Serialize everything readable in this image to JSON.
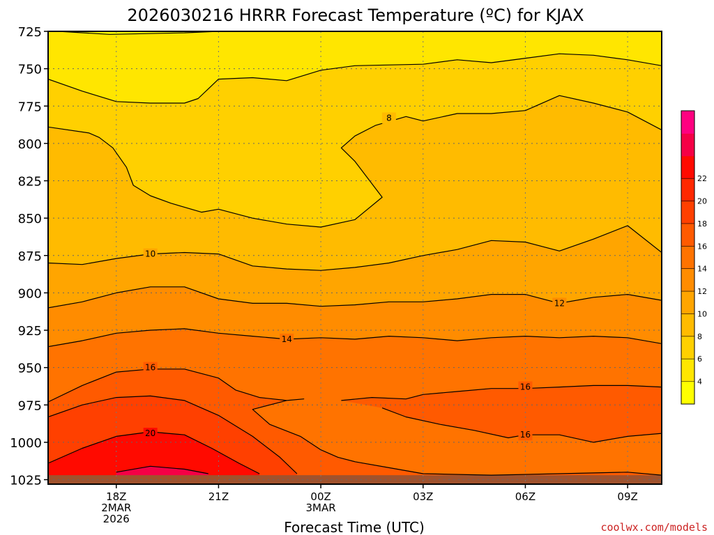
{
  "chart_data": {
    "type": "heatmap",
    "title": "2026030216 HRRR Forecast Temperature (ºC) for KJAX",
    "xlabel": "Forecast Time (UTC)",
    "credit": "coolwx.com/models",
    "credit_color": "#cc2222",
    "y_axis": {
      "ylim": [
        725,
        1028
      ],
      "ticks": [
        725,
        750,
        775,
        800,
        825,
        850,
        875,
        900,
        925,
        950,
        975,
        1000,
        1025
      ],
      "inverted": true
    },
    "x_axis": {
      "xlim": [
        16,
        34
      ],
      "grid": true,
      "ticks": [
        {
          "x": 18,
          "label": [
            "18Z",
            "2MAR",
            "2026"
          ]
        },
        {
          "x": 21,
          "label": [
            "21Z"
          ]
        },
        {
          "x": 24,
          "label": [
            "00Z",
            "3MAR"
          ]
        },
        {
          "x": 27,
          "label": [
            "03Z"
          ]
        },
        {
          "x": 30,
          "label": [
            "06Z"
          ]
        },
        {
          "x": 33,
          "label": [
            "09Z"
          ]
        }
      ]
    },
    "ground_color": "#a0522d",
    "colorbar": {
      "ticks": [
        4,
        6,
        8,
        10,
        12,
        14,
        16,
        18,
        20,
        22
      ],
      "colors": [
        "#ffff00",
        "#ffe600",
        "#ffd000",
        "#ffbb00",
        "#ffa500",
        "#ff8c00",
        "#ff7300",
        "#ff5a00",
        "#ff4000",
        "#ff2800",
        "#ff0a00",
        "#f50046",
        "#ff0080"
      ]
    },
    "contours": [
      {
        "level": 6,
        "label": "",
        "points": [
          [
            16.3,
            725
          ],
          [
            17.8,
            727
          ],
          [
            20.0,
            726
          ],
          [
            21.0,
            725
          ]
        ]
      },
      {
        "level": 6,
        "label": "",
        "points": [
          [
            16.0,
            757
          ],
          [
            17.0,
            765
          ],
          [
            18.0,
            772
          ],
          [
            19.0,
            773
          ],
          [
            20.0,
            773
          ],
          [
            20.4,
            770
          ],
          [
            21.0,
            757
          ],
          [
            22.0,
            756
          ],
          [
            23.0,
            758
          ],
          [
            24.0,
            751
          ],
          [
            25.0,
            748
          ],
          [
            27.0,
            747
          ],
          [
            28.0,
            744
          ],
          [
            29.0,
            746
          ],
          [
            30.0,
            743
          ],
          [
            31.0,
            740
          ],
          [
            32.0,
            741
          ],
          [
            33.0,
            744
          ],
          [
            34.0,
            748
          ]
        ]
      },
      {
        "level": 8,
        "label": "8",
        "label_at": [
          26.0,
          783
        ],
        "points": [
          [
            16.0,
            789
          ],
          [
            17.2,
            793
          ],
          [
            17.5,
            796
          ],
          [
            17.9,
            803
          ],
          [
            18.3,
            816
          ],
          [
            18.5,
            828
          ],
          [
            19.0,
            835
          ],
          [
            19.6,
            840
          ],
          [
            20.5,
            846
          ],
          [
            21.0,
            844
          ],
          [
            22.0,
            850
          ],
          [
            23.0,
            854
          ],
          [
            24.0,
            856
          ],
          [
            25.0,
            851
          ],
          [
            25.8,
            836
          ],
          [
            25.0,
            812
          ],
          [
            24.6,
            803
          ],
          [
            25.0,
            795
          ],
          [
            25.6,
            788
          ],
          [
            26.5,
            782
          ],
          [
            27.0,
            785
          ],
          [
            28.0,
            780
          ],
          [
            29.0,
            780
          ],
          [
            30.0,
            778
          ],
          [
            31.0,
            768
          ],
          [
            32.0,
            773
          ],
          [
            33.0,
            779
          ],
          [
            34.0,
            791
          ]
        ]
      },
      {
        "level": 10,
        "label": "10",
        "label_at": [
          19.0,
          874
        ],
        "points": [
          [
            16.0,
            880
          ],
          [
            17.0,
            881
          ],
          [
            18.0,
            877
          ],
          [
            19.0,
            874
          ],
          [
            20.0,
            873
          ],
          [
            21.0,
            874
          ],
          [
            22.0,
            882
          ],
          [
            23.0,
            884
          ],
          [
            24.0,
            885
          ],
          [
            25.0,
            883
          ],
          [
            26.0,
            880
          ],
          [
            27.0,
            875
          ],
          [
            28.0,
            871
          ],
          [
            29.0,
            865
          ],
          [
            30.0,
            866
          ],
          [
            31.0,
            872
          ],
          [
            32.0,
            864
          ],
          [
            33.0,
            855
          ],
          [
            34.0,
            873
          ]
        ]
      },
      {
        "level": 12,
        "label": "12",
        "label_at": [
          31.0,
          907
        ],
        "points": [
          [
            16.0,
            910
          ],
          [
            17.0,
            906
          ],
          [
            18.0,
            900
          ],
          [
            19.0,
            896
          ],
          [
            20.0,
            896
          ],
          [
            21.0,
            904
          ],
          [
            22.0,
            907
          ],
          [
            23.0,
            907
          ],
          [
            24.0,
            909
          ],
          [
            25.0,
            908
          ],
          [
            26.0,
            906
          ],
          [
            27.0,
            906
          ],
          [
            28.0,
            904
          ],
          [
            29.0,
            901
          ],
          [
            30.0,
            901
          ],
          [
            31.0,
            907
          ],
          [
            32.0,
            903
          ],
          [
            33.0,
            901
          ],
          [
            34.0,
            905
          ]
        ]
      },
      {
        "level": 14,
        "label": "14",
        "label_at": [
          23.0,
          931
        ],
        "points": [
          [
            16.0,
            936
          ],
          [
            17.0,
            932
          ],
          [
            18.0,
            927
          ],
          [
            19.0,
            925
          ],
          [
            20.0,
            924
          ],
          [
            21.0,
            927
          ],
          [
            22.0,
            929
          ],
          [
            23.0,
            931
          ],
          [
            24.0,
            930
          ],
          [
            25.0,
            931
          ],
          [
            26.0,
            929
          ],
          [
            27.0,
            930
          ],
          [
            28.0,
            932
          ],
          [
            29.0,
            930
          ],
          [
            30.0,
            929
          ],
          [
            31.0,
            930
          ],
          [
            32.0,
            929
          ],
          [
            33.0,
            930
          ],
          [
            34.0,
            934
          ]
        ]
      },
      {
        "level": 16,
        "label": "16",
        "label_at": [
          19.0,
          950
        ],
        "points": [
          [
            16.0,
            973
          ],
          [
            17.0,
            962
          ],
          [
            18.0,
            953
          ],
          [
            19.0,
            951
          ],
          [
            20.0,
            951
          ],
          [
            21.0,
            957
          ],
          [
            21.5,
            965
          ],
          [
            22.2,
            970
          ],
          [
            23.0,
            972
          ],
          [
            23.5,
            971
          ],
          [
            23.0,
            972
          ],
          [
            22.0,
            978
          ],
          [
            22.5,
            988
          ],
          [
            23.4,
            996
          ],
          [
            24.0,
            1005
          ],
          [
            24.5,
            1010
          ],
          [
            25.0,
            1013
          ],
          [
            26.0,
            1017
          ],
          [
            27.0,
            1021
          ],
          [
            29.0,
            1022
          ],
          [
            31.0,
            1021
          ],
          [
            33.0,
            1020
          ],
          [
            34.0,
            1022
          ]
        ]
      },
      {
        "level": 16,
        "label": "16",
        "label_at": [
          30.0,
          963
        ],
        "points": [
          [
            24.6,
            972
          ],
          [
            25.5,
            970
          ],
          [
            26.5,
            971
          ],
          [
            27.0,
            968
          ],
          [
            28.0,
            966
          ],
          [
            29.0,
            964
          ],
          [
            30.0,
            964
          ],
          [
            31.0,
            963
          ],
          [
            32.0,
            962
          ],
          [
            33.0,
            962
          ],
          [
            34.0,
            963
          ]
        ]
      },
      {
        "level": 16,
        "label": "16",
        "label_at": [
          30.0,
          995
        ],
        "points": [
          [
            25.8,
            977
          ],
          [
            26.5,
            983
          ],
          [
            27.5,
            988
          ],
          [
            28.5,
            992
          ],
          [
            29.5,
            997
          ],
          [
            30.0,
            995
          ],
          [
            31.0,
            995
          ],
          [
            32.0,
            1000
          ],
          [
            33.0,
            996
          ],
          [
            34.0,
            994
          ]
        ]
      },
      {
        "level": 18,
        "label": "",
        "points": [
          [
            16.0,
            983
          ],
          [
            17.0,
            975
          ],
          [
            18.0,
            970
          ],
          [
            19.0,
            969
          ],
          [
            20.0,
            972
          ],
          [
            21.0,
            982
          ],
          [
            22.0,
            996
          ],
          [
            22.8,
            1010
          ],
          [
            23.3,
            1021
          ]
        ]
      },
      {
        "level": 20,
        "label": "20",
        "label_at": [
          19.0,
          994
        ],
        "points": [
          [
            16.0,
            1014
          ],
          [
            17.0,
            1004
          ],
          [
            18.0,
            996
          ],
          [
            19.0,
            993
          ],
          [
            20.0,
            995
          ],
          [
            20.8,
            1004
          ],
          [
            21.6,
            1014
          ],
          [
            22.2,
            1021
          ]
        ]
      },
      {
        "level": 22,
        "label": "",
        "points": [
          [
            18.0,
            1020
          ],
          [
            19.0,
            1016
          ],
          [
            20.0,
            1018
          ],
          [
            20.7,
            1021
          ]
        ]
      }
    ]
  }
}
